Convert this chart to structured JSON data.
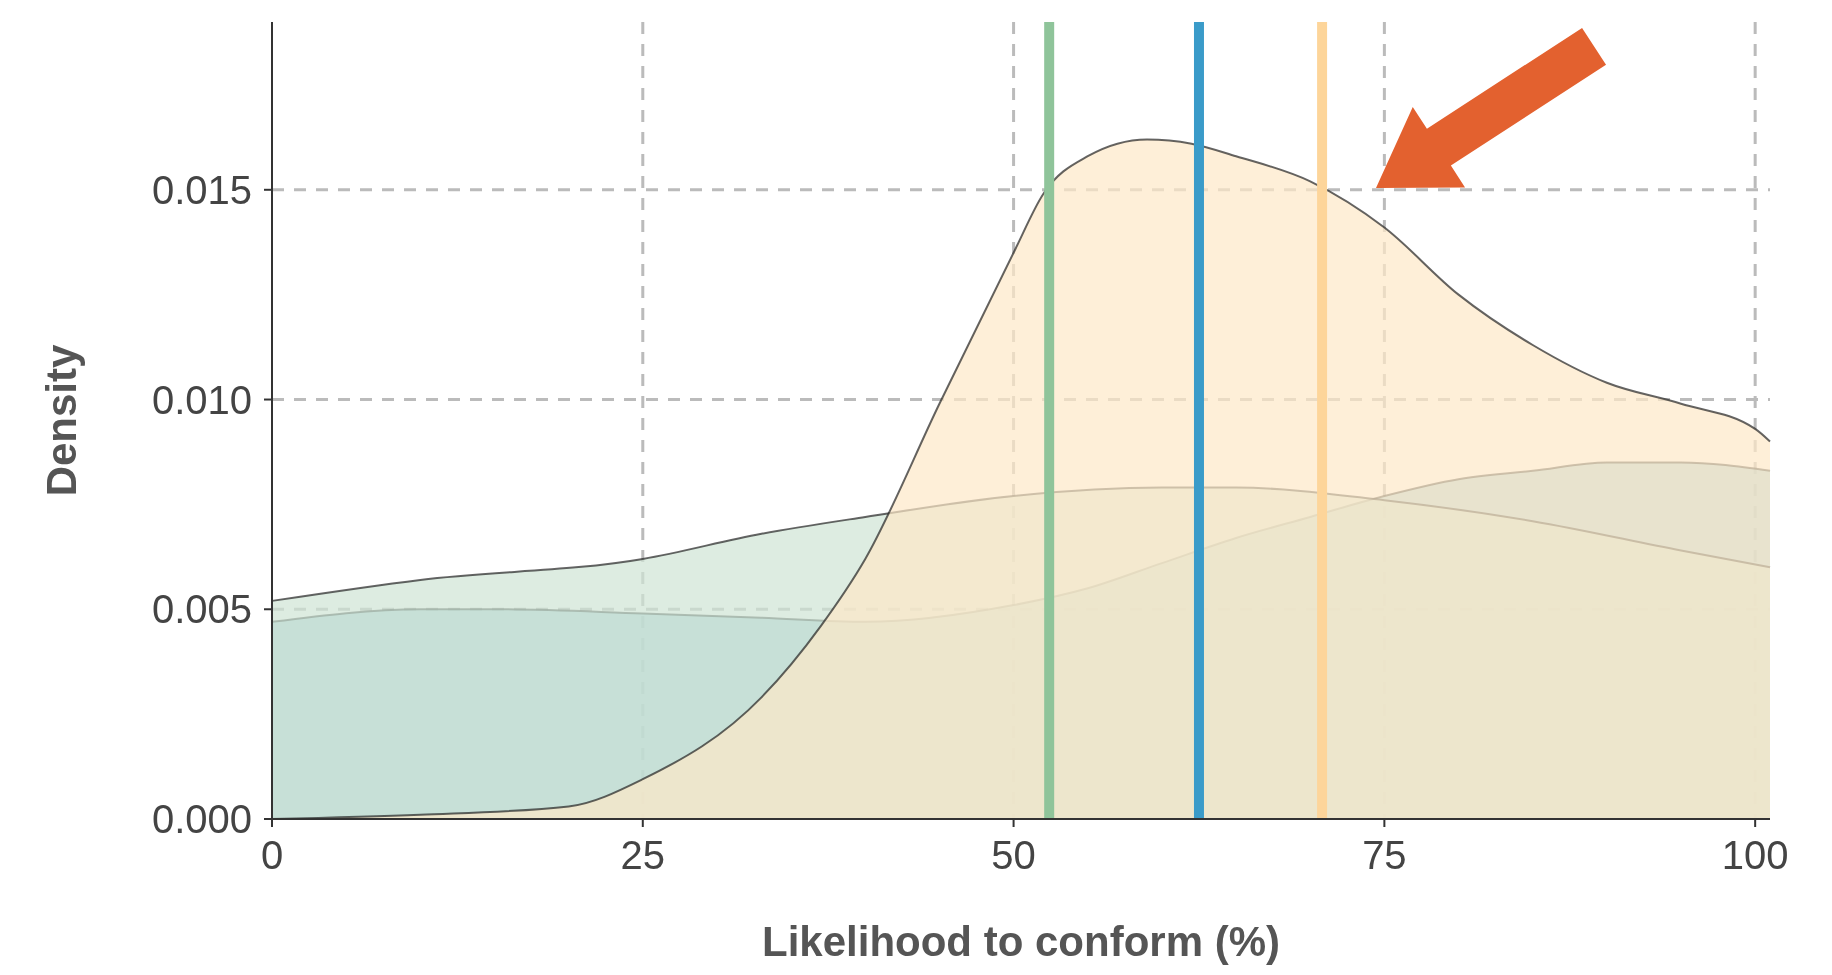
{
  "chart_data": {
    "type": "area",
    "xlabel": "Likelihood to conform (%)",
    "ylabel": "Density",
    "xlim": [
      0,
      101
    ],
    "ylim": [
      0,
      0.019
    ],
    "xticks": [
      0,
      25,
      50,
      75,
      100
    ],
    "yticks": [
      {
        "value": 0,
        "label": "0.000"
      },
      {
        "value": 0.005,
        "label": "0.005"
      },
      {
        "value": 0.01,
        "label": "0.010"
      },
      {
        "value": 0.015,
        "label": "0.015"
      }
    ],
    "grid": true,
    "series": [
      {
        "color": "#96c6cf",
        "x": [
          0,
          10,
          15,
          25,
          33,
          40,
          50,
          55,
          60,
          65,
          70,
          75,
          80,
          85,
          90,
          95,
          101
        ],
        "values": [
          0.0047,
          0.005,
          0.005,
          0.0049,
          0.0048,
          0.0047,
          0.0051,
          0.0055,
          0.0061,
          0.0067,
          0.0072,
          0.0077,
          0.0081,
          0.0083,
          0.0085,
          0.0085,
          0.0083
        ]
      },
      {
        "color": "#cfe4d4",
        "x": [
          0,
          10,
          25,
          33,
          40,
          50,
          60,
          65,
          75,
          85,
          95,
          101
        ],
        "values": [
          0.0052,
          0.0057,
          0.0062,
          0.0068,
          0.0072,
          0.0077,
          0.0079,
          0.0079,
          0.0076,
          0.0071,
          0.0064,
          0.006
        ]
      },
      {
        "color": "#fde8c8",
        "x": [
          0,
          10,
          20,
          25,
          33,
          37,
          40,
          45,
          50,
          52,
          55,
          59,
          62,
          65,
          70,
          75,
          80,
          85,
          90,
          95,
          100,
          101
        ],
        "values": [
          0,
          0.0001,
          0.0003,
          0.00095,
          0.0029,
          0.0046,
          0.0062,
          0.0099,
          0.0135,
          0.0149,
          0.0158,
          0.0162,
          0.0161,
          0.0158,
          0.0152,
          0.0141,
          0.0125,
          0.0113,
          0.0104,
          0.0099,
          0.0093,
          0.009
        ]
      }
    ],
    "ref_lines": [
      {
        "axis": "x",
        "value": 52.4,
        "color": "#8fc49a"
      },
      {
        "axis": "x",
        "value": 62.5,
        "color": "#3a9bc9"
      },
      {
        "axis": "x",
        "value": 70.8,
        "color": "#fdd59a"
      }
    ]
  }
}
